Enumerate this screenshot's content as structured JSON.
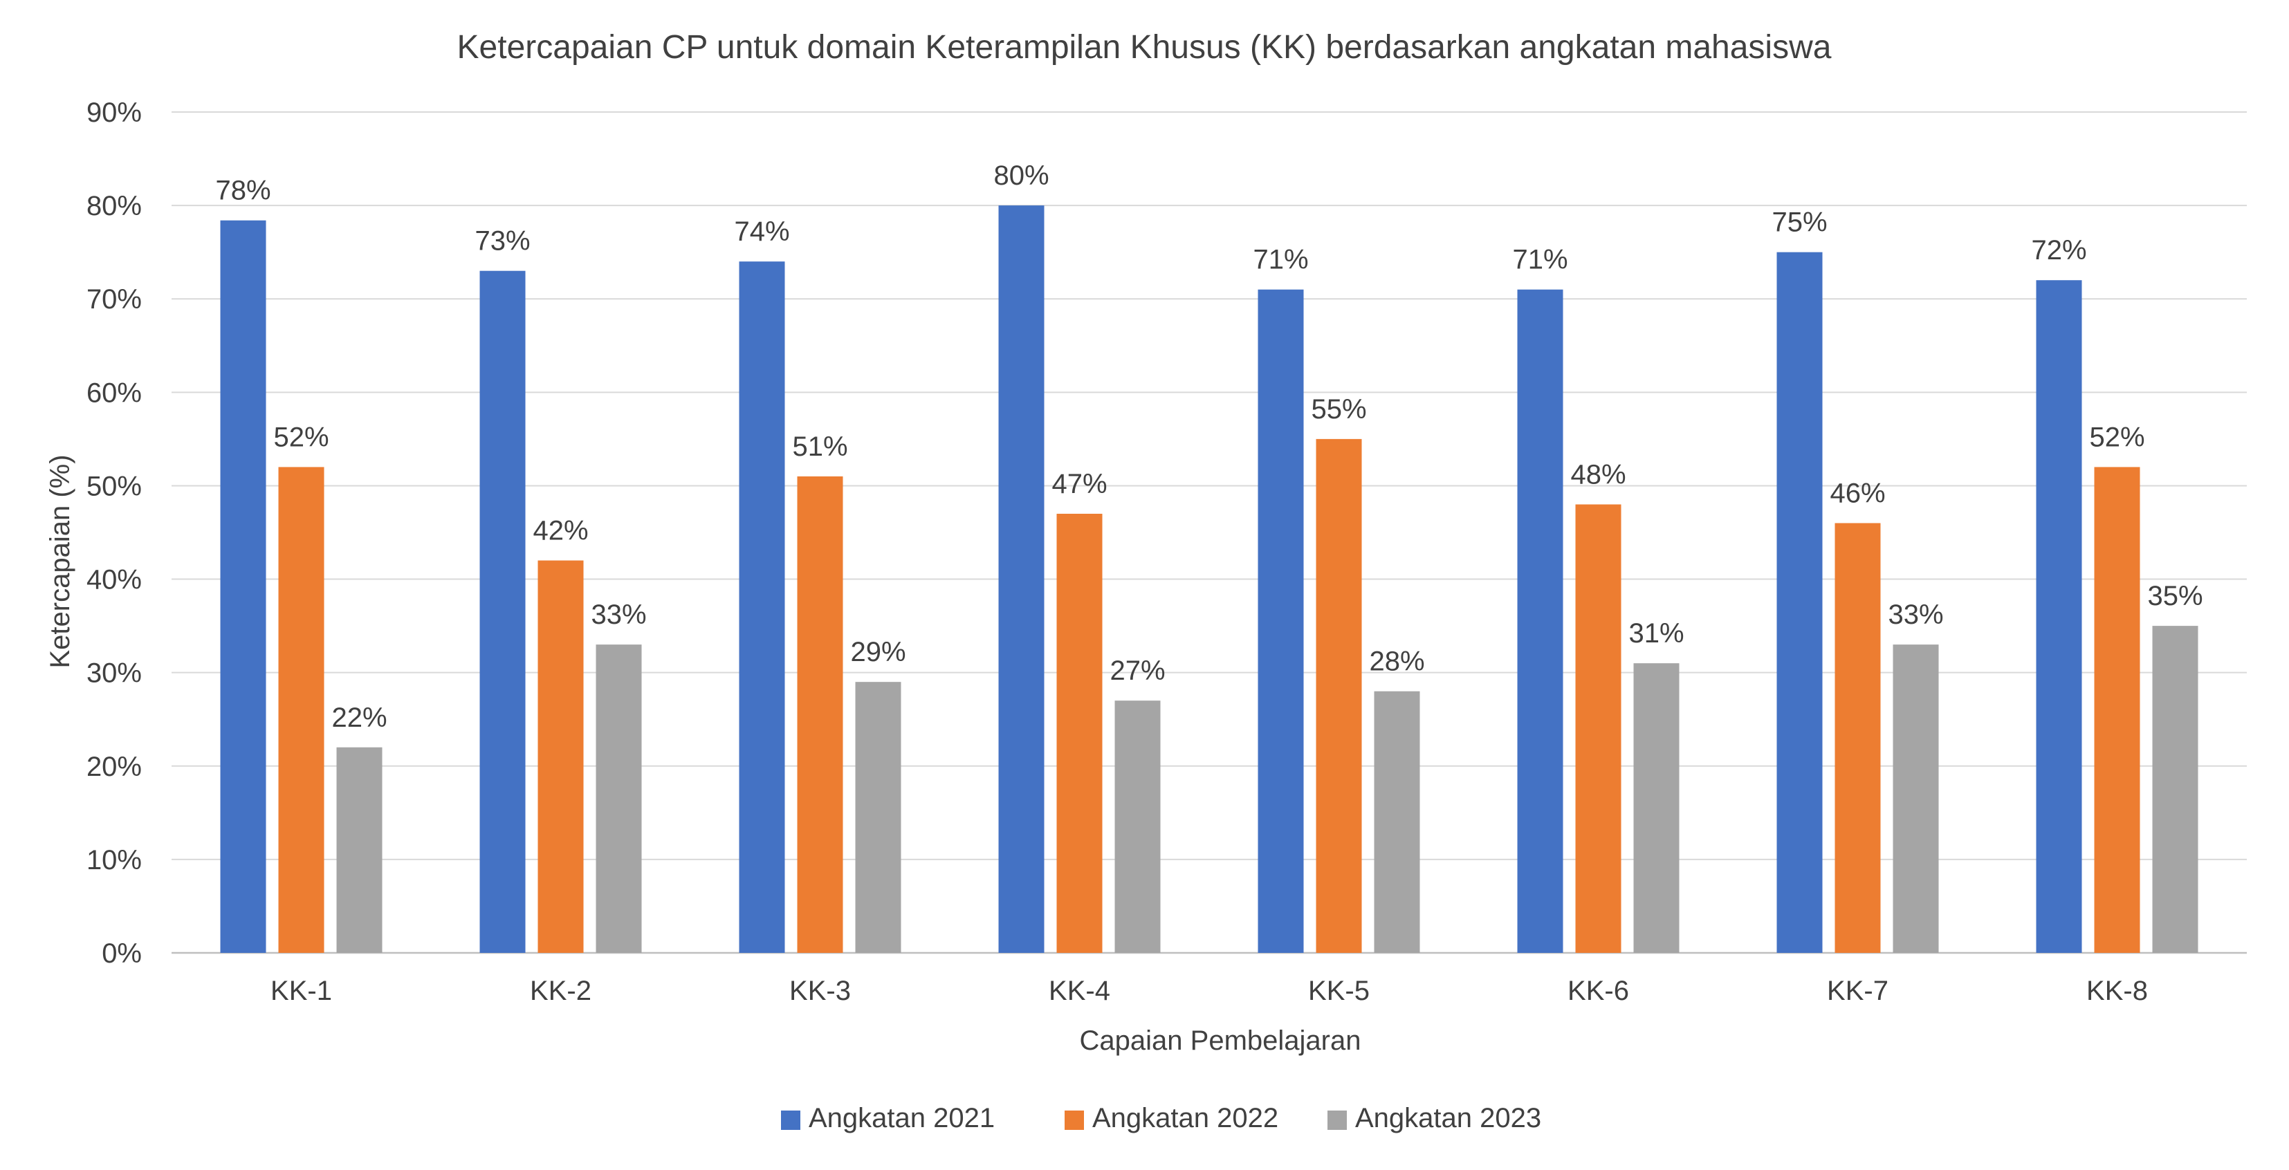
{
  "chart_data": {
    "type": "bar",
    "title": "Ketercapaian CP untuk domain Keterampilan Khusus (KK) berdasarkan angkatan mahasiswa",
    "xlabel": "Capaian Pembelajaran",
    "ylabel": "Ketercapaian (%)",
    "ylim": [
      0,
      90
    ],
    "yticks": [
      "0%",
      "10%",
      "20%",
      "30%",
      "40%",
      "50%",
      "60%",
      "70%",
      "80%",
      "90%"
    ],
    "categories": [
      "KK-1",
      "KK-2",
      "KK-3",
      "KK-4",
      "KK-5",
      "KK-6",
      "KK-7",
      "KK-8"
    ],
    "series": [
      {
        "name": "Angkatan 2021",
        "color": "#4472C4",
        "values": [
          78.4,
          73,
          74,
          80,
          71,
          71,
          75,
          72
        ],
        "labels": [
          "78%",
          "73%",
          "74%",
          "80%",
          "71%",
          "71%",
          "75%",
          "72%"
        ]
      },
      {
        "name": "Angkatan 2022",
        "color": "#ED7D31",
        "values": [
          52,
          42,
          51,
          47,
          55,
          48,
          46,
          52
        ],
        "labels": [
          "52%",
          "42%",
          "51%",
          "47%",
          "55%",
          "48%",
          "46%",
          "52%"
        ]
      },
      {
        "name": "Angkatan 2023",
        "color": "#A5A5A5",
        "values": [
          22,
          33,
          29,
          27,
          28,
          31,
          33,
          35
        ],
        "labels": [
          "22%",
          "33%",
          "29%",
          "27%",
          "28%",
          "31%",
          "33%",
          "35%"
        ]
      }
    ],
    "grid": true,
    "legend": "bottom"
  }
}
